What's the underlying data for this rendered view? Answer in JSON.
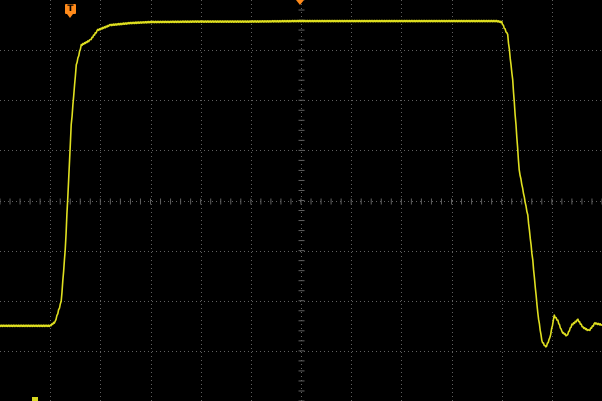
{
  "screen": {
    "background": "#000000",
    "grid_color": "#606060",
    "trace_color": "#e0e020",
    "marker_color": "#ff8a1a"
  },
  "grid": {
    "divisions_x": 12,
    "divisions_y": 8,
    "minor_ticks_per_division": 5
  },
  "trigger_marker": {
    "label": "T",
    "icon": "trigger-icon"
  },
  "horizontal_position_marker": {
    "icon": "triangle-down-icon"
  },
  "channel_marker": {
    "icon": "channel-ground-icon"
  },
  "chart_data": {
    "type": "line",
    "title": "",
    "xlabel": "",
    "ylabel": "",
    "x_unit": "divisions",
    "y_unit": "divisions",
    "xlim": [
      0,
      12
    ],
    "ylim": [
      0,
      8
    ],
    "grid": true,
    "series": [
      {
        "points": [
          [
            0.0,
            1.5
          ],
          [
            0.5,
            1.5
          ],
          [
            1.0,
            1.5
          ],
          [
            1.1,
            1.58
          ],
          [
            1.22,
            1.98
          ],
          [
            1.3,
            3.0
          ],
          [
            1.42,
            5.5
          ],
          [
            1.52,
            6.7
          ],
          [
            1.62,
            7.1
          ],
          [
            1.8,
            7.2
          ],
          [
            1.95,
            7.4
          ],
          [
            2.2,
            7.5
          ],
          [
            2.6,
            7.54
          ],
          [
            3.0,
            7.56
          ],
          [
            4.0,
            7.57
          ],
          [
            5.0,
            7.57
          ],
          [
            6.0,
            7.58
          ],
          [
            7.0,
            7.58
          ],
          [
            8.0,
            7.58
          ],
          [
            9.0,
            7.58
          ],
          [
            9.9,
            7.58
          ],
          [
            10.0,
            7.56
          ],
          [
            10.12,
            7.3
          ],
          [
            10.22,
            6.4
          ],
          [
            10.35,
            4.6
          ],
          [
            10.52,
            3.7
          ],
          [
            10.62,
            2.8
          ],
          [
            10.72,
            1.75
          ],
          [
            10.8,
            1.2
          ],
          [
            10.88,
            1.07
          ],
          [
            10.96,
            1.25
          ],
          [
            11.05,
            1.7
          ],
          [
            11.12,
            1.6
          ],
          [
            11.2,
            1.38
          ],
          [
            11.3,
            1.3
          ],
          [
            11.4,
            1.52
          ],
          [
            11.52,
            1.62
          ],
          [
            11.62,
            1.47
          ],
          [
            11.74,
            1.4
          ],
          [
            11.86,
            1.55
          ],
          [
            12.0,
            1.52
          ]
        ]
      }
    ]
  }
}
